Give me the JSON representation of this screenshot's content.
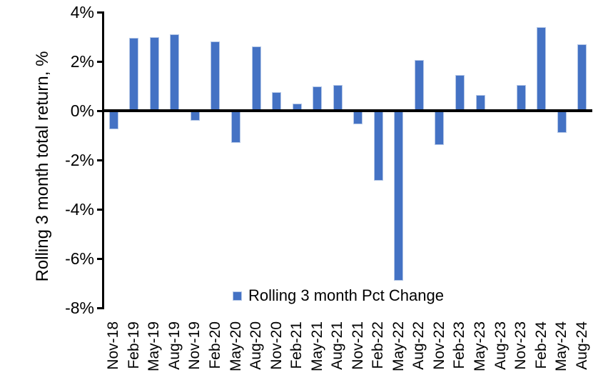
{
  "chart_data": {
    "type": "bar",
    "title": "",
    "xlabel": "",
    "ylabel": "Rolling 3 month total return, %",
    "ylim": [
      -8,
      4
    ],
    "ytick_values": [
      4,
      2,
      0,
      -2,
      -4,
      -6,
      -8
    ],
    "ytick_labels": [
      "4%",
      "2%",
      "0%",
      "-2%",
      "-4%",
      "-6%",
      "-8%"
    ],
    "grid": false,
    "legend_position": "bottom-center",
    "categories": [
      "Nov-18",
      "Feb-19",
      "May-19",
      "Aug-19",
      "Nov-19",
      "Feb-20",
      "May-20",
      "Aug-20",
      "Nov-20",
      "Feb-21",
      "May-21",
      "Aug-21",
      "Nov-21",
      "Feb-22",
      "May-22",
      "Aug-22",
      "Nov-22",
      "Feb-23",
      "May-23",
      "Aug-23",
      "Nov-23",
      "Feb-24",
      "May-24",
      "Aug-24"
    ],
    "series": [
      {
        "name": "Rolling 3 month Pct Change",
        "values": [
          -0.75,
          2.95,
          3.0,
          3.1,
          -0.4,
          2.8,
          -1.3,
          2.6,
          0.75,
          0.3,
          1.0,
          1.05,
          -0.55,
          -2.85,
          -6.9,
          2.05,
          -1.4,
          1.45,
          0.65,
          0.0,
          1.05,
          3.4,
          -0.9,
          2.7
        ]
      }
    ]
  },
  "colors": {
    "bar_fill": "#4472C4",
    "bar_border": "#B4C7E7",
    "axis": "#000000",
    "text": "#000000",
    "background": "#FFFFFF"
  },
  "legend": {
    "marker": "square-icon",
    "label": "Rolling 3 month Pct Change"
  }
}
